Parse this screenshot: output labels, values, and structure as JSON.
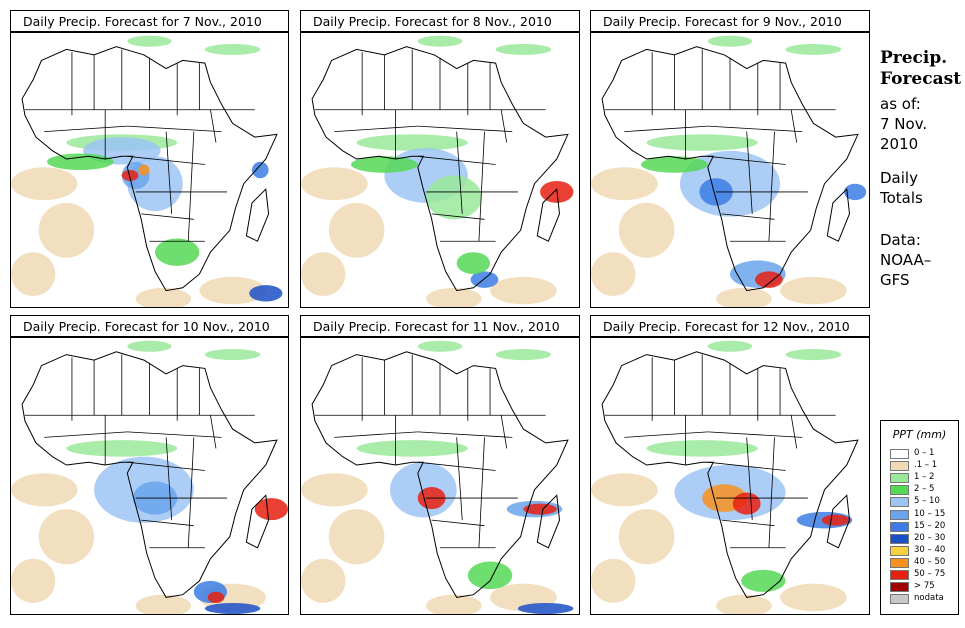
{
  "panels": [
    {
      "title": "Daily Precip. Forecast for  7 Nov., 2010",
      "day": 7
    },
    {
      "title": "Daily Precip. Forecast for  8 Nov., 2010",
      "day": 8
    },
    {
      "title": "Daily Precip. Forecast for  9 Nov., 2010",
      "day": 9
    },
    {
      "title": "Daily Precip. Forecast for  10 Nov., 2010",
      "day": 10
    },
    {
      "title": "Daily Precip. Forecast for  11 Nov., 2010",
      "day": 11
    },
    {
      "title": "Daily Precip. Forecast for  12 Nov., 2010",
      "day": 12
    }
  ],
  "sidebar": {
    "title_line1": "Precip.",
    "title_line2": "Forecast",
    "asof_line1": "as of:",
    "asof_line2": "7 Nov.",
    "asof_line3": "2010",
    "totals_line1": "Daily",
    "totals_line2": "Totals",
    "data_line1": "Data:",
    "data_line2": "NOAA–",
    "data_line3": "GFS"
  },
  "legend": {
    "title": "PPT (mm)",
    "items": [
      {
        "label": "0 – 1",
        "color": "#ffffff"
      },
      {
        "label": ".1 – 1",
        "color": "#f0d9b5"
      },
      {
        "label": "1 – 2",
        "color": "#9ae89a"
      },
      {
        "label": "2 – 5",
        "color": "#55d855"
      },
      {
        "label": "5 – 10",
        "color": "#9cc4f4"
      },
      {
        "label": "10 – 15",
        "color": "#6aa4ec"
      },
      {
        "label": "15 – 20",
        "color": "#3c7ce4"
      },
      {
        "label": "20 – 30",
        "color": "#1c50c8"
      },
      {
        "label": "30 – 40",
        "color": "#f8d040"
      },
      {
        "label": "40 – 50",
        "color": "#f89020"
      },
      {
        "label": "50 – 75",
        "color": "#e82010"
      },
      {
        "label": "> 75",
        "color": "#a00000"
      },
      {
        "label": "nodata",
        "color": "#c8c8c8"
      }
    ]
  }
}
